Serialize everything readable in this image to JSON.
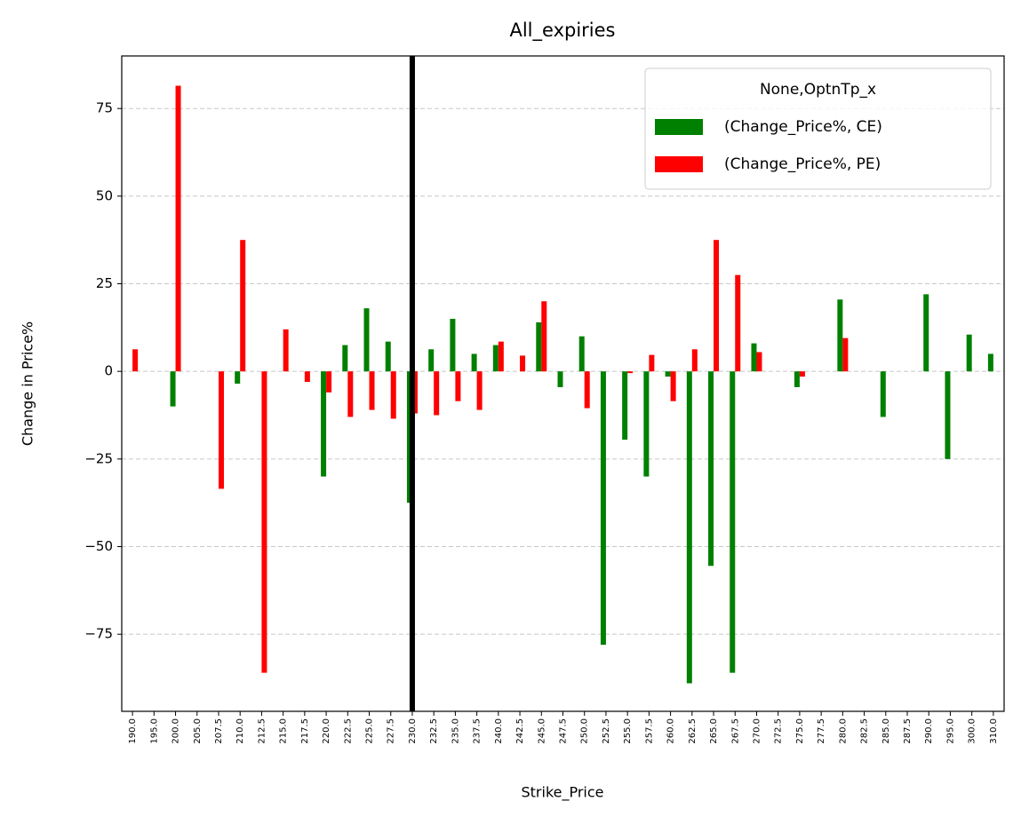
{
  "chart_data": {
    "type": "bar",
    "title": "All_expiries",
    "x_label": "Strike_Price",
    "y_label": "Change in Price%",
    "legend_title": "None,OptnTp_x",
    "legend_position": "upper right",
    "grid": true,
    "vline": "230.0",
    "categories": [
      "190.0",
      "195.0",
      "200.0",
      "205.0",
      "207.5",
      "210.0",
      "212.5",
      "215.0",
      "217.5",
      "220.0",
      "222.5",
      "225.0",
      "227.5",
      "230.0",
      "232.5",
      "235.0",
      "237.5",
      "240.0",
      "242.5",
      "245.0",
      "247.5",
      "250.0",
      "252.5",
      "255.0",
      "257.5",
      "260.0",
      "262.5",
      "265.0",
      "267.5",
      "270.0",
      "272.5",
      "275.0",
      "277.5",
      "280.0",
      "282.5",
      "285.0",
      "287.5",
      "290.0",
      "295.0",
      "300.0",
      "310.0"
    ],
    "series": [
      {
        "name": "(Change_Price%, CE)",
        "color": "#008000",
        "values": [
          null,
          null,
          -10,
          null,
          null,
          -3.5,
          null,
          null,
          null,
          -30,
          7.5,
          18,
          8.5,
          -37.5,
          6.3,
          15,
          5,
          7.5,
          null,
          14,
          -4.5,
          10,
          -78,
          -19.5,
          -30,
          -1.5,
          -89,
          -55.5,
          -86,
          8,
          null,
          -4.5,
          null,
          20.5,
          null,
          -13,
          null,
          22,
          -25,
          10.5,
          5
        ]
      },
      {
        "name": "(Change_Price%, PE)",
        "color": "#ff0000",
        "values": [
          6.3,
          null,
          81.5,
          null,
          -33.5,
          37.5,
          -86,
          12,
          -3,
          -6,
          -13,
          -11,
          -13.5,
          -12,
          -12.5,
          -8.5,
          -11,
          8.5,
          4.5,
          20,
          null,
          -10.5,
          null,
          -0.5,
          4.7,
          -8.5,
          6.3,
          37.5,
          27.5,
          5.5,
          null,
          -1.5,
          null,
          9.5,
          null,
          null,
          null,
          null,
          null,
          null,
          null
        ]
      }
    ],
    "ylim": [
      -97,
      90
    ],
    "yticks": [
      {
        "value": -75,
        "label": "−75"
      },
      {
        "value": -50,
        "label": "−50"
      },
      {
        "value": -25,
        "label": "−25"
      },
      0,
      25,
      50,
      75
    ]
  }
}
